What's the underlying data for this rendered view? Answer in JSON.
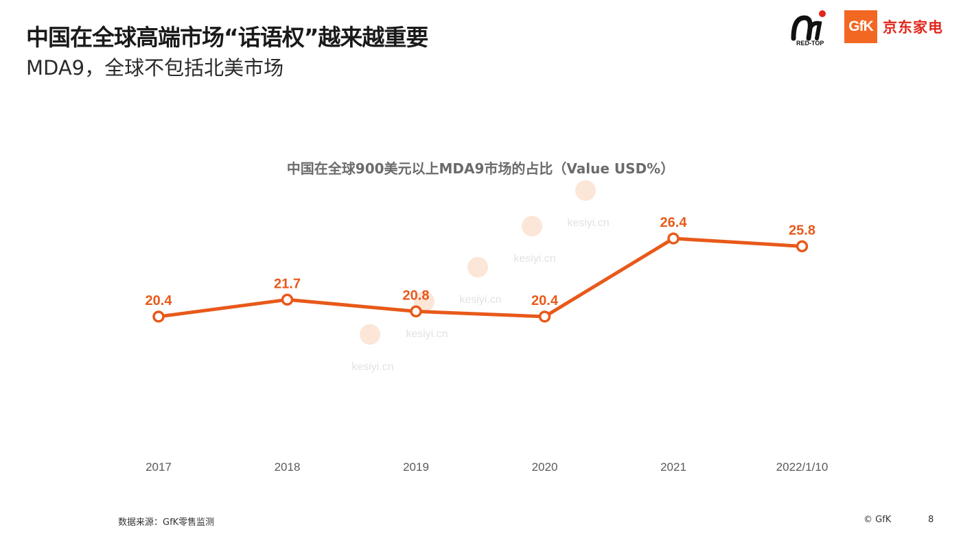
{
  "header": {
    "title": "中国在全球高端市场“话语权”越来越重要",
    "subtitle": "MDA9，全球不包括北美市场"
  },
  "logos": {
    "redtop_text": "RED-TOP",
    "gfk_text": "GfK",
    "jd_text": "京东家电"
  },
  "watermark": "kesiyi.cn",
  "chart_data": {
    "type": "line",
    "title": "中国在全球900美元以上MDA9市场的占比（Value USD%）",
    "categories": [
      "2017",
      "2018",
      "2019",
      "2020",
      "2021",
      "2022/1/10"
    ],
    "series": [
      {
        "values": [
          20.4,
          21.7,
          20.8,
          20.4,
          26.4,
          25.8
        ]
      }
    ],
    "data_labels": [
      "20.4",
      "21.7",
      "20.8",
      "20.4",
      "26.4",
      "25.8"
    ],
    "color": "#e8591a",
    "grid": false,
    "ylabel": "",
    "xlabel": ""
  },
  "footer": {
    "source": "数据来源：GfK零售监测",
    "copyright": "© GfK",
    "page": "8"
  }
}
